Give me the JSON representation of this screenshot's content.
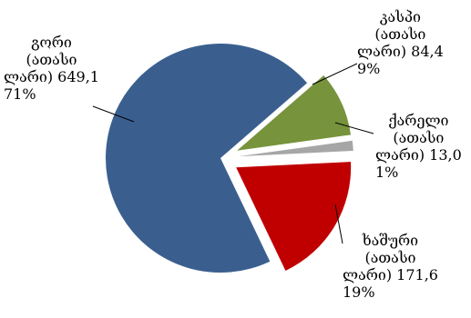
{
  "chart_data": {
    "type": "pie",
    "exploded": true,
    "start_angle_deg": 49,
    "slices": [
      {
        "label_lines": [
          "კასპი",
          "(ათასი",
          "ლარი) 84,4"
        ],
        "value": 84.4,
        "percent": "9%",
        "color": "#77933c"
      },
      {
        "label_lines": [
          "ქარელი",
          "(ათასი",
          "ლარი) 13,0"
        ],
        "value": 13.0,
        "percent": "1%",
        "color": "#a6a6a6"
      },
      {
        "label_lines": [
          "ხაშური",
          "(ათასი",
          "ლარი) 171,6"
        ],
        "value": 171.6,
        "percent": "19%",
        "color": "#c00000"
      },
      {
        "label_lines": [
          "გორი",
          "(ათასი",
          "ლარი) 649,1"
        ],
        "value": 649.1,
        "percent": "71%",
        "color": "#3a5f8f"
      }
    ]
  }
}
